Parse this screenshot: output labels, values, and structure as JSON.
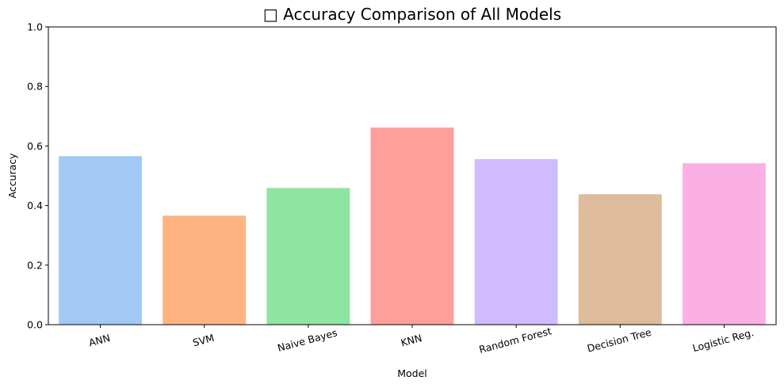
{
  "chart_data": {
    "type": "bar",
    "title": "□ Accuracy Comparison of All Models",
    "xlabel": "Model",
    "ylabel": "Accuracy",
    "categories": [
      "ANN",
      "SVM",
      "Naive Bayes",
      "KNN",
      "Random Forest",
      "Decision Tree",
      "Logistic Reg."
    ],
    "values": [
      0.566,
      0.366,
      0.459,
      0.662,
      0.556,
      0.438,
      0.542
    ],
    "colors": [
      "#a1c9f4",
      "#ffb482",
      "#8de5a1",
      "#ff9f9b",
      "#d0bbff",
      "#debb9b",
      "#fab0e4"
    ],
    "ylim": [
      0,
      1.0
    ],
    "yticks": [
      "0.0",
      "0.2",
      "0.4",
      "0.6",
      "0.8",
      "1.0"
    ],
    "grid": false,
    "legend": "none"
  }
}
